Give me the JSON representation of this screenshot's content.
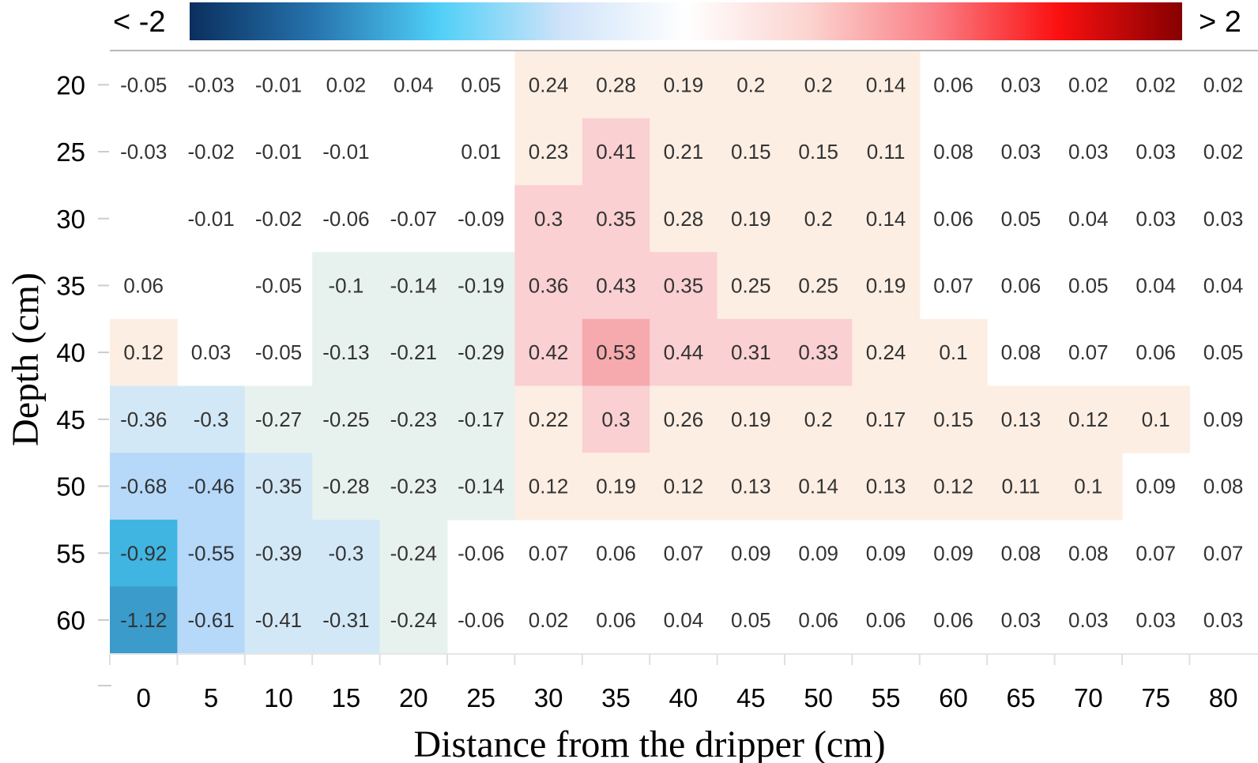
{
  "chart_data": {
    "type": "heatmap",
    "title": "",
    "xlabel": "Distance from the dripper (cm)",
    "ylabel": "Depth (cm)",
    "x": [
      0,
      5,
      10,
      15,
      20,
      25,
      30,
      35,
      40,
      45,
      50,
      55,
      60,
      65,
      70,
      75,
      80
    ],
    "y": [
      20,
      25,
      30,
      35,
      40,
      45,
      50,
      55,
      60
    ],
    "values": [
      [
        -0.05,
        -0.03,
        -0.01,
        0.02,
        0.04,
        0.05,
        0.24,
        0.28,
        0.19,
        0.2,
        0.2,
        0.14,
        0.06,
        0.03,
        0.02,
        0.02,
        0.02
      ],
      [
        -0.03,
        -0.02,
        -0.01,
        -0.01,
        null,
        0.01,
        0.23,
        0.41,
        0.21,
        0.15,
        0.15,
        0.11,
        0.08,
        0.03,
        0.03,
        0.03,
        0.02
      ],
      [
        null,
        -0.01,
        -0.02,
        -0.06,
        -0.07,
        -0.09,
        0.3,
        0.35,
        0.28,
        0.19,
        0.2,
        0.14,
        0.06,
        0.05,
        0.04,
        0.03,
        0.03
      ],
      [
        0.06,
        null,
        -0.05,
        -0.1,
        -0.14,
        -0.19,
        0.36,
        0.43,
        0.35,
        0.25,
        0.25,
        0.19,
        0.07,
        0.06,
        0.05,
        0.04,
        0.04
      ],
      [
        0.12,
        0.03,
        -0.05,
        -0.13,
        -0.21,
        -0.29,
        0.42,
        0.53,
        0.44,
        0.31,
        0.33,
        0.24,
        0.1,
        0.08,
        0.07,
        0.06,
        0.05
      ],
      [
        -0.36,
        -0.3,
        -0.27,
        -0.25,
        -0.23,
        -0.17,
        0.22,
        0.3,
        0.26,
        0.19,
        0.2,
        0.17,
        0.15,
        0.13,
        0.12,
        0.1,
        0.09
      ],
      [
        -0.68,
        -0.46,
        -0.35,
        -0.28,
        -0.23,
        -0.14,
        0.12,
        0.19,
        0.12,
        0.13,
        0.14,
        0.13,
        0.12,
        0.11,
        0.1,
        0.09,
        0.08
      ],
      [
        -0.92,
        -0.55,
        -0.39,
        -0.3,
        -0.24,
        -0.06,
        0.07,
        0.06,
        0.07,
        0.09,
        0.09,
        0.09,
        0.09,
        0.08,
        0.08,
        0.07,
        0.07
      ],
      [
        -1.12,
        -0.61,
        -0.41,
        -0.31,
        -0.24,
        -0.06,
        0.02,
        0.06,
        0.04,
        0.05,
        0.06,
        0.06,
        0.06,
        0.03,
        0.03,
        0.03,
        0.03
      ]
    ],
    "value_labels": [
      [
        "-0.05",
        "-0.03",
        "-0.01",
        "0.02",
        "0.04",
        "0.05",
        "0.24",
        "0.28",
        "0.19",
        "0.2",
        "0.2",
        "0.14",
        "0.06",
        "0.03",
        "0.02",
        "0.02",
        "0.02"
      ],
      [
        "-0.03",
        "-0.02",
        "-0.01",
        "-0.01",
        "",
        "0.01",
        "0.23",
        "0.41",
        "0.21",
        "0.15",
        "0.15",
        "0.11",
        "0.08",
        "0.03",
        "0.03",
        "0.03",
        "0.02"
      ],
      [
        "",
        "-0.01",
        "-0.02",
        "-0.06",
        "-0.07",
        "-0.09",
        "0.3",
        "0.35",
        "0.28",
        "0.19",
        "0.2",
        "0.14",
        "0.06",
        "0.05",
        "0.04",
        "0.03",
        "0.03"
      ],
      [
        "0.06",
        "",
        "-0.05",
        "-0.1",
        "-0.14",
        "-0.19",
        "0.36",
        "0.43",
        "0.35",
        "0.25",
        "0.25",
        "0.19",
        "0.07",
        "0.06",
        "0.05",
        "0.04",
        "0.04"
      ],
      [
        "0.12",
        "0.03",
        "-0.05",
        "-0.13",
        "-0.21",
        "-0.29",
        "0.42",
        "0.53",
        "0.44",
        "0.31",
        "0.33",
        "0.24",
        "0.1",
        "0.08",
        "0.07",
        "0.06",
        "0.05"
      ],
      [
        "-0.36",
        "-0.3",
        "-0.27",
        "-0.25",
        "-0.23",
        "-0.17",
        "0.22",
        "0.3",
        "0.26",
        "0.19",
        "0.2",
        "0.17",
        "0.15",
        "0.13",
        "0.12",
        "0.1",
        "0.09"
      ],
      [
        "-0.68",
        "-0.46",
        "-0.35",
        "-0.28",
        "-0.23",
        "-0.14",
        "0.12",
        "0.19",
        "0.12",
        "0.13",
        "0.14",
        "0.13",
        "0.12",
        "0.11",
        "0.1",
        "0.09",
        "0.08"
      ],
      [
        "-0.92",
        "-0.55",
        "-0.39",
        "-0.3",
        "-0.24",
        "-0.06",
        "0.07",
        "0.06",
        "0.07",
        "0.09",
        "0.09",
        "0.09",
        "0.09",
        "0.08",
        "0.08",
        "0.07",
        "0.07"
      ],
      [
        "-1.12",
        "-0.61",
        "-0.41",
        "-0.31",
        "-0.24",
        "-0.06",
        "0.02",
        "0.06",
        "0.04",
        "0.05",
        "0.06",
        "0.06",
        "0.06",
        "0.03",
        "0.03",
        "0.03",
        "0.03"
      ]
    ],
    "x_tick_labels": [
      "0",
      "5",
      "10",
      "15",
      "20",
      "25",
      "30",
      "35",
      "40",
      "45",
      "50",
      "55",
      "60",
      "65",
      "70",
      "75",
      "80"
    ],
    "y_tick_labels": [
      "20",
      "25",
      "30",
      "35",
      "40",
      "45",
      "50",
      "55",
      "60"
    ],
    "color_scale": {
      "min_label": "< -2",
      "max_label": "> 2",
      "range": [
        -2,
        2
      ],
      "stops": [
        "#0a2f5e",
        "#2673ad",
        "#4fcff7",
        "#cfe3f9",
        "#ffffff",
        "#fbd3cf",
        "#fa7f86",
        "#fb1010",
        "#860000"
      ]
    },
    "cell_colors": {
      "positive_high": "#f7aaad",
      "positive_mid": "#fad0d2",
      "positive_low": "#fdeee3",
      "neutral": "#ffffff",
      "negative_low": "#e7f2ef",
      "negative_mid": "#d3e8f6",
      "negative_strong": "#b6d9fa",
      "negative_high": "#40b5e2",
      "negative_max": "#3b9bcb"
    },
    "legend_position": "top",
    "grid": true,
    "axis_line_color": "#bbbbbb"
  }
}
